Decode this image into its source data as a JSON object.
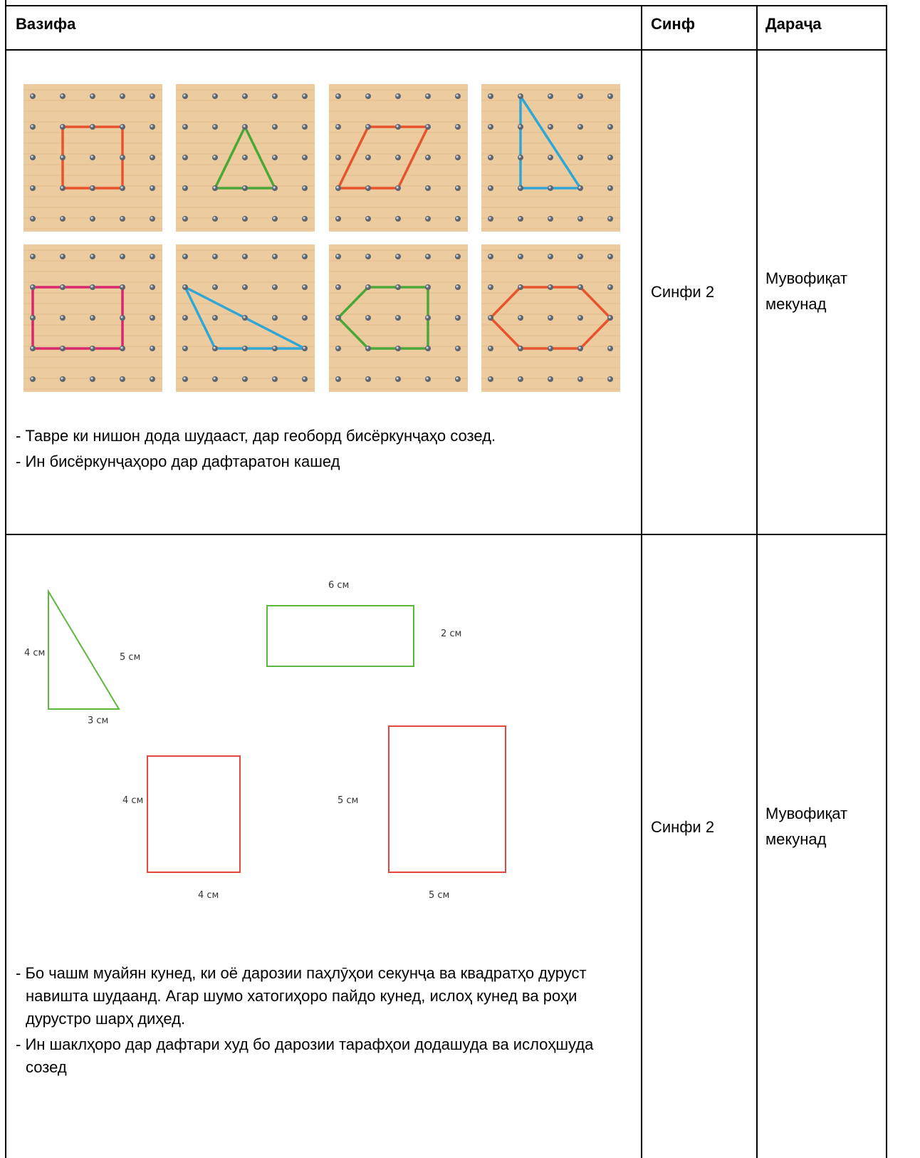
{
  "table": {
    "header": [
      "Вазифа",
      "Синф",
      "Дараҷа"
    ],
    "rows": [
      {
        "task": {
          "instructions": [
            "- Тавре ки нишон дода шудааст, дар геоборд бисёркунҷаҳо созед.",
            "- Ин бисёркунҷаҳоро дар дафтаратон кашед"
          ]
        },
        "grade": "Синфи 2",
        "level": "Мувофиқат мекунад"
      },
      {
        "task": {
          "figure_labels": [
            "4 см",
            "5 см",
            "3 см",
            "6 см",
            "2 см",
            "4 см",
            "4 см",
            "5 см",
            "5 см"
          ],
          "instructions": [
            "- Бо чашм муайян кунед, ки оё дарозии паҳлӯҳои секунҷа ва квадратҳо дуруст навишта шудаанд. Агар шумо хатогиҳоро пайдо кунед, ислоҳ кунед ва роҳи дурустро шарҳ диҳед.",
            "- Ин шаклҳоро дар дафтари худ бо дарозии тарафҳои додашуда ва ислоҳшуда созед"
          ]
        },
        "grade": "Синфи 2",
        "level": "Мувофиқат мекунад"
      }
    ]
  }
}
